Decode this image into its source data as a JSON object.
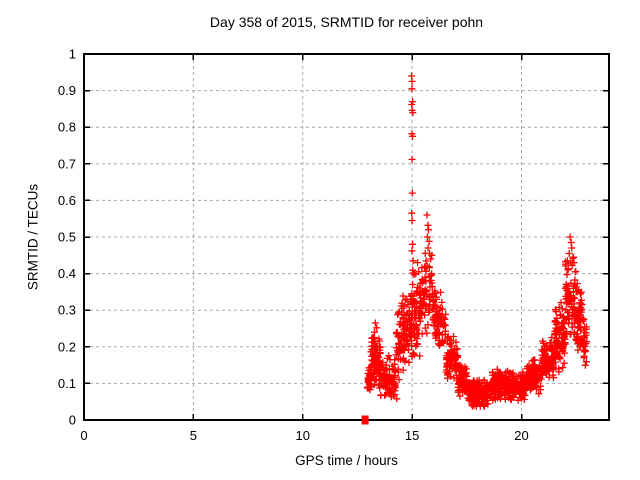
{
  "title": "Day 358 of 2015, SRMTID for receiver pohn",
  "colors": {
    "marker": "#ff0000",
    "grid": "#a8a8a8",
    "axis": "#000000",
    "background": "#ffffff",
    "text": "#000000"
  },
  "chart_data": {
    "type": "scatter",
    "title": "Day 358 of 2015, SRMTID for receiver pohn",
    "xlabel": "GPS time / hours",
    "ylabel": "SRMTID / TECUs",
    "xlim": [
      0,
      24
    ],
    "ylim": [
      0,
      1
    ],
    "xticks": [
      0,
      5,
      10,
      15,
      20
    ],
    "yticks": [
      0,
      0.1,
      0.2,
      0.3,
      0.4,
      0.5,
      0.6,
      0.7,
      0.8,
      0.9,
      1
    ],
    "grid": {
      "show": true,
      "style": "dashed",
      "color": "#a8a8a8"
    },
    "legend": null,
    "marker": {
      "shape": "plus",
      "color": "#ff0000",
      "size": 7
    },
    "series": [
      {
        "name": "SRMTID",
        "x_start_hour": 12.83,
        "x_end_hour": 23.0,
        "zero_square_point": [
          12.85,
          0.0
        ],
        "peak_points": [
          [
            14.97,
            0.94
          ],
          [
            15.0,
            0.925
          ],
          [
            14.99,
            0.905
          ],
          [
            15.02,
            0.87
          ],
          [
            14.98,
            0.862
          ],
          [
            15.0,
            0.846
          ],
          [
            15.03,
            0.84
          ],
          [
            14.99,
            0.782
          ],
          [
            15.02,
            0.775
          ],
          [
            15.0,
            0.712
          ],
          [
            15.01,
            0.62
          ],
          [
            14.98,
            0.565
          ],
          [
            15.0,
            0.545
          ],
          [
            15.02,
            0.48
          ],
          [
            14.99,
            0.462
          ],
          [
            15.05,
            0.435
          ],
          [
            15.25,
            0.43
          ],
          [
            15.3,
            0.405
          ],
          [
            15.68,
            0.56
          ],
          [
            15.72,
            0.532
          ],
          [
            15.75,
            0.52
          ],
          [
            15.7,
            0.5
          ],
          [
            15.78,
            0.488
          ],
          [
            15.73,
            0.47
          ],
          [
            15.8,
            0.455
          ],
          [
            15.85,
            0.44
          ],
          [
            15.9,
            0.45
          ],
          [
            22.22,
            0.5
          ],
          [
            22.27,
            0.485
          ],
          [
            22.3,
            0.47
          ],
          [
            22.18,
            0.455
          ],
          [
            22.35,
            0.442
          ],
          [
            22.4,
            0.43
          ],
          [
            13.32,
            0.265
          ],
          [
            13.38,
            0.252
          ],
          [
            13.28,
            0.24
          ],
          [
            14.3,
            0.058
          ]
        ],
        "clusters": [
          {
            "x0": 12.95,
            "x1": 13.15,
            "ymin": 0.07,
            "ymax": 0.16,
            "n": 28
          },
          {
            "x0": 13.1,
            "x1": 13.55,
            "ymin": 0.08,
            "ymax": 0.25,
            "n": 85
          },
          {
            "x0": 13.55,
            "x1": 14.25,
            "ymin": 0.05,
            "ymax": 0.18,
            "n": 100
          },
          {
            "x0": 14.25,
            "x1": 14.95,
            "ymin": 0.1,
            "ymax": 0.36,
            "n": 100
          },
          {
            "x0": 14.95,
            "x1": 15.35,
            "ymin": 0.15,
            "ymax": 0.42,
            "n": 70
          },
          {
            "x0": 15.35,
            "x1": 16.0,
            "ymin": 0.23,
            "ymax": 0.46,
            "n": 75
          },
          {
            "x0": 16.0,
            "x1": 16.55,
            "ymin": 0.18,
            "ymax": 0.38,
            "n": 70
          },
          {
            "x0": 16.55,
            "x1": 17.1,
            "ymin": 0.1,
            "ymax": 0.24,
            "n": 80
          },
          {
            "x0": 17.1,
            "x1": 17.55,
            "ymin": 0.06,
            "ymax": 0.16,
            "n": 75
          },
          {
            "x0": 17.55,
            "x1": 18.6,
            "ymin": 0.03,
            "ymax": 0.12,
            "n": 155
          },
          {
            "x0": 18.6,
            "x1": 19.3,
            "ymin": 0.05,
            "ymax": 0.14,
            "n": 110
          },
          {
            "x0": 19.3,
            "x1": 20.2,
            "ymin": 0.05,
            "ymax": 0.14,
            "n": 125
          },
          {
            "x0": 20.2,
            "x1": 20.9,
            "ymin": 0.07,
            "ymax": 0.17,
            "n": 105
          },
          {
            "x0": 20.9,
            "x1": 21.5,
            "ymin": 0.1,
            "ymax": 0.23,
            "n": 95
          },
          {
            "x0": 21.5,
            "x1": 22.0,
            "ymin": 0.13,
            "ymax": 0.33,
            "n": 85
          },
          {
            "x0": 22.0,
            "x1": 22.5,
            "ymin": 0.2,
            "ymax": 0.46,
            "n": 80
          },
          {
            "x0": 22.5,
            "x1": 22.8,
            "ymin": 0.18,
            "ymax": 0.4,
            "n": 55
          },
          {
            "x0": 22.8,
            "x1": 23.0,
            "ymin": 0.12,
            "ymax": 0.3,
            "n": 30
          }
        ]
      }
    ]
  }
}
